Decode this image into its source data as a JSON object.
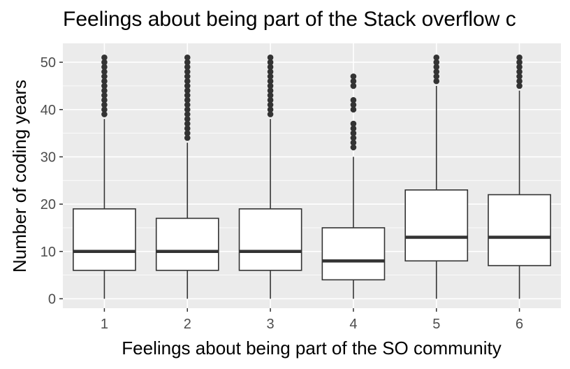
{
  "chart_data": {
    "type": "boxplot",
    "title": "Feelings about being part of the Stack overflow c",
    "xlabel": "Feelings about being part of the SO community",
    "ylabel": "Number of coding years",
    "ylim": [
      -2,
      54
    ],
    "yticks": [
      0,
      10,
      20,
      30,
      40,
      50
    ],
    "grid": true,
    "legend": "none",
    "colors": {
      "panel": "#ebebeb",
      "grid": "#ffffff",
      "box_fill": "#ffffff",
      "line": "#333333",
      "tick_text": "#4d4d4d"
    },
    "categories": [
      "1",
      "2",
      "3",
      "4",
      "5",
      "6"
    ],
    "boxes": [
      {
        "min": 0,
        "q1": 6,
        "median": 10,
        "q3": 19,
        "whisker_high": 38,
        "outliers": [
          39,
          40,
          41,
          42,
          43,
          44,
          45,
          46,
          47,
          48,
          49,
          50,
          51
        ]
      },
      {
        "min": 0,
        "q1": 6,
        "median": 10,
        "q3": 17,
        "whisker_high": 33,
        "outliers": [
          34,
          35,
          36,
          37,
          38,
          39,
          40,
          41,
          42,
          43,
          44,
          45,
          46,
          47,
          48,
          49,
          50,
          51
        ]
      },
      {
        "min": 0,
        "q1": 6,
        "median": 10,
        "q3": 19,
        "whisker_high": 38,
        "outliers": [
          39,
          40,
          41,
          42,
          43,
          44,
          45,
          46,
          47,
          48,
          49,
          50,
          51
        ]
      },
      {
        "min": 0,
        "q1": 4,
        "median": 8,
        "q3": 15,
        "whisker_high": 30,
        "outliers": [
          32,
          33,
          34,
          35,
          36,
          37,
          40,
          41,
          42,
          45,
          46,
          47
        ]
      },
      {
        "min": 0,
        "q1": 8,
        "median": 13,
        "q3": 23,
        "whisker_high": 45,
        "outliers": [
          46,
          47,
          48,
          49,
          50,
          51
        ]
      },
      {
        "min": 0,
        "q1": 7,
        "median": 13,
        "q3": 22,
        "whisker_high": 44,
        "outliers": [
          45,
          46,
          47,
          48,
          49,
          50,
          51
        ]
      }
    ]
  }
}
